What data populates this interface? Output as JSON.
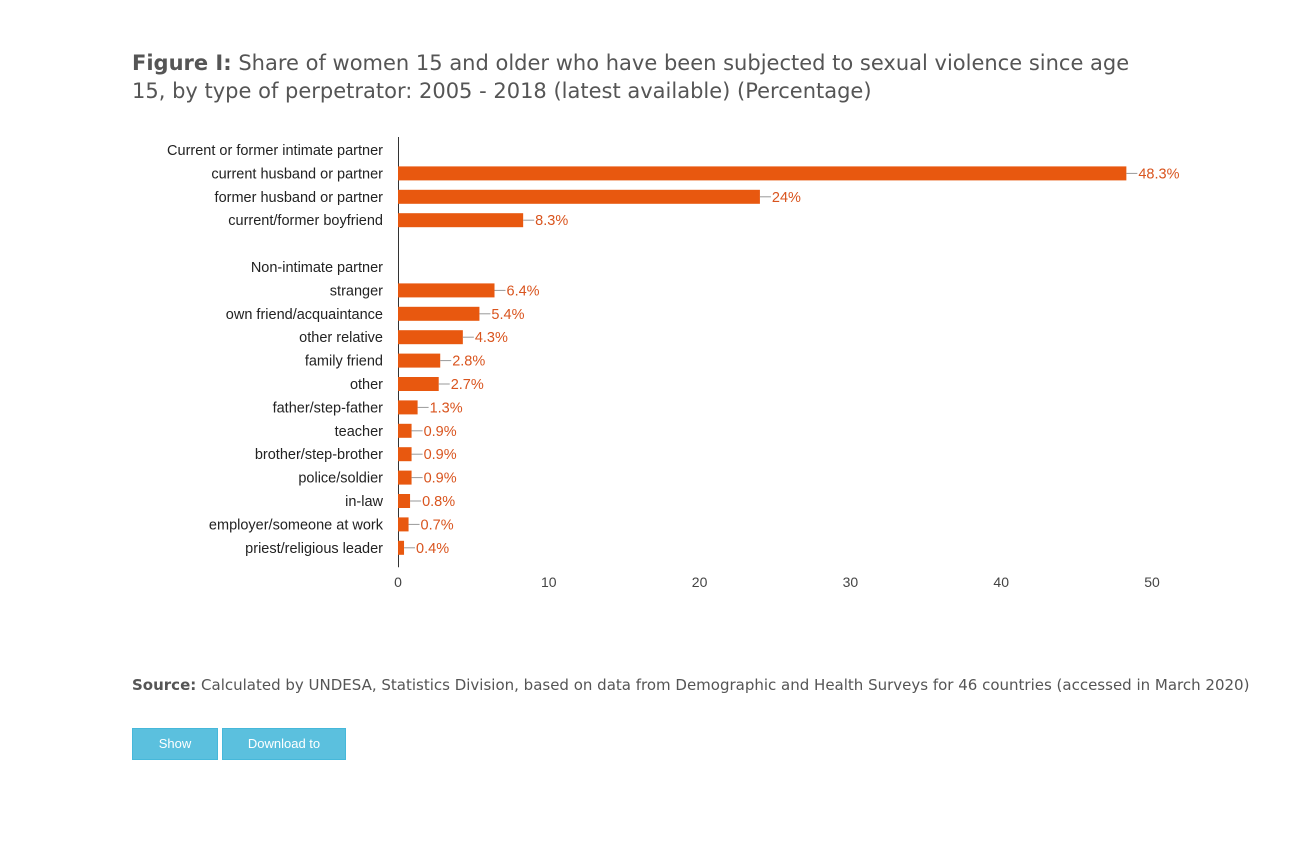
{
  "figure": {
    "label": "Figure I:",
    "title": "Share of women 15 and older who have been subjected to sexual violence since age 15, by type of perpetrator: 2005 - 2018 (latest available) (Percentage)"
  },
  "chart_data": {
    "type": "bar",
    "orientation": "horizontal",
    "categories": [
      "Current or former intimate partner",
      "current husband or partner",
      "former husband or partner",
      "current/former boyfriend",
      "",
      "Non-intimate partner",
      "stranger",
      "own friend/acquaintance",
      "other relative",
      "family friend",
      "other",
      "father/step-father",
      "teacher",
      "brother/step-brother",
      "police/soldier",
      "in-law",
      "employer/someone at work",
      "priest/religious leader"
    ],
    "values": [
      null,
      48.3,
      24,
      8.3,
      null,
      null,
      6.4,
      5.4,
      4.3,
      2.8,
      2.7,
      1.3,
      0.9,
      0.9,
      0.9,
      0.8,
      0.7,
      0.4
    ],
    "data_labels": [
      "",
      "48.3%",
      "24%",
      "8.3%",
      "",
      "",
      "6.4%",
      "5.4%",
      "4.3%",
      "2.8%",
      "2.7%",
      "1.3%",
      "0.9%",
      "0.9%",
      "0.9%",
      "0.8%",
      "0.7%",
      "0.4%"
    ],
    "xlim": [
      0,
      50
    ],
    "x_ticks": [
      0,
      10,
      20,
      30,
      40,
      50
    ],
    "xlabel": "",
    "ylabel": "",
    "grid": false,
    "legend": "none",
    "bar_color": "#e8580f",
    "label_color": "#d9541e"
  },
  "source": {
    "label": "Source:",
    "text": "Calculated by UNDESA, Statistics Division, based on data from Demographic and Health Surveys for 46 countries (accessed in March 2020)"
  },
  "buttons": {
    "show_data": "Show Data",
    "download_csv": "Download to CSV"
  },
  "colors": {
    "button_bg": "#5bc0de",
    "text": "#555555"
  }
}
